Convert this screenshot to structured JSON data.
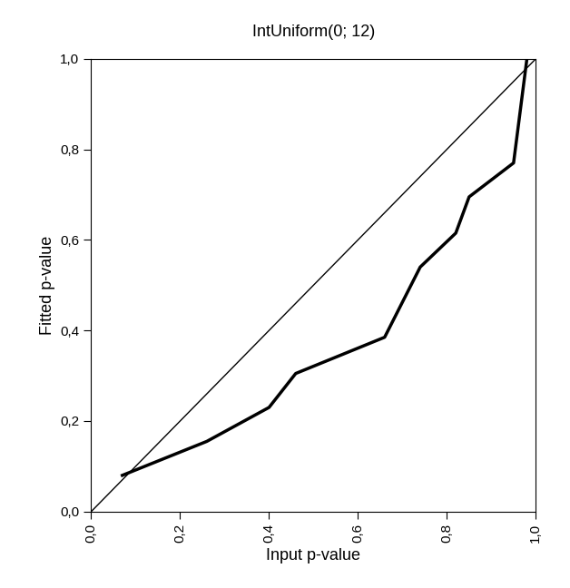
{
  "chart_data": {
    "type": "line",
    "title": "IntUniform(0; 12)",
    "x_label": "Input p-value",
    "y_label": "Fitted p-value",
    "series": [
      {
        "x": [
          0.0,
          1.0
        ],
        "values": [
          0.0,
          1.0
        ],
        "color": "#000000",
        "line_style": "thin"
      },
      {
        "x": [
          0.07,
          0.26,
          0.4,
          0.46,
          0.66,
          0.74,
          0.82,
          0.85,
          0.95,
          0.98
        ],
        "values": [
          0.08,
          0.155,
          0.23,
          0.305,
          0.385,
          0.54,
          0.615,
          0.695,
          0.77,
          1.0
        ],
        "color": "#000000",
        "line_style": "thick"
      }
    ],
    "xlim": [
      0,
      1
    ],
    "ylim": [
      0,
      1
    ],
    "xticks": [
      {
        "value": 0,
        "label": "0,0"
      },
      {
        "value": 0.2,
        "label": "0,2"
      },
      {
        "value": 0.4,
        "label": "0,4"
      },
      {
        "value": 0.6,
        "label": "0,6"
      },
      {
        "value": 0.8,
        "label": "0,8"
      },
      {
        "value": 1,
        "label": "1,0"
      }
    ],
    "yticks": [
      {
        "value": 0,
        "label": "0,0"
      },
      {
        "value": 0.2,
        "label": "0,2"
      },
      {
        "value": 0.4,
        "label": "0,4"
      },
      {
        "value": 0.6,
        "label": "0,6"
      },
      {
        "value": 0.8,
        "label": "0,8"
      },
      {
        "value": 1,
        "label": "1,0"
      }
    ],
    "grid": false
  }
}
